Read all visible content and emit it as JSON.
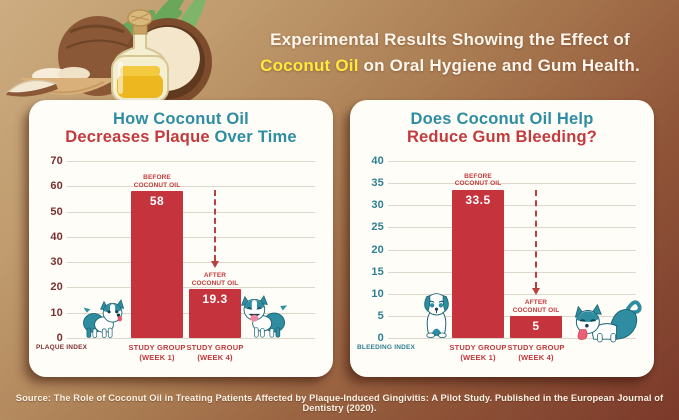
{
  "header": {
    "line1": "Experimental Results Showing the Effect of",
    "line2_highlight": "Coconut Oil",
    "line2_rest": " on Oral Hygiene and Gum Health."
  },
  "source": "Source: The Role of Coconut Oil in Treating Patients Affected by Plaque-Induced Gingivitis: A Pilot Study. Published in the European Journal of Dentistry (2020).",
  "colors": {
    "teal": "#2e8da1",
    "teal_dark": "#2d7f93",
    "red": "#c23a3e",
    "bar_red": "#c5333c",
    "maroon": "#7b3030",
    "white": "#ffffff",
    "yellow": "#ffe93a",
    "bg_light": "#ccac81",
    "bg_dark": "#7b392a"
  },
  "chart_data": [
    {
      "type": "bar",
      "title": "How Coconut Oil Decreases Plaque Over Time",
      "title_segments": [
        [
          {
            "text": "How Coconut Oil",
            "color": "teal"
          }
        ],
        [
          {
            "text": "Decreases Plaque",
            "color": "red"
          },
          {
            "text": " Over Time",
            "color": "teal"
          }
        ]
      ],
      "ylabel": "PLAQUE INDEX",
      "axis_color": "maroon",
      "ylim": [
        0,
        70
      ],
      "yticks": [
        70,
        60,
        50,
        40,
        30,
        20,
        10,
        0
      ],
      "grid": true,
      "categories": [
        "STUDY GROUP (WEEK 1)",
        "STUDY GROUP (WEEK 4)"
      ],
      "bars": [
        {
          "value": 58,
          "display": "58",
          "annotation": [
            "BEFORE",
            "COCONUT OIL"
          ],
          "arrow": false,
          "category": [
            "STUDY GROUP",
            "(WEEK 1)"
          ]
        },
        {
          "value": 19.3,
          "display": "19.3",
          "annotation": [
            "AFTER",
            "COCONUT OIL"
          ],
          "arrow": true,
          "category": [
            "STUDY GROUP",
            "(WEEK 4)"
          ]
        }
      ]
    },
    {
      "type": "bar",
      "title": "Does Coconut Oil Help Reduce Gum Bleeding?",
      "title_segments": [
        [
          {
            "text": "Does Coconut Oil Help",
            "color": "teal"
          }
        ],
        [
          {
            "text": "Reduce Gum Bleeding?",
            "color": "red"
          }
        ]
      ],
      "ylabel": "BLEEDING INDEX",
      "axis_color": "teal_dark",
      "ylim": [
        0,
        40
      ],
      "yticks": [
        40,
        35,
        30,
        25,
        20,
        15,
        10,
        5,
        0
      ],
      "grid": true,
      "categories": [
        "STUDY GROUP (WEEK 1)",
        "STUDY GROUP (WEEK 4)"
      ],
      "bars": [
        {
          "value": 33.5,
          "display": "33.5",
          "annotation": [
            "BEFORE",
            "COCONUT OIL"
          ],
          "arrow": false,
          "category": [
            "STUDY GROUP",
            "(WEEK 1)"
          ]
        },
        {
          "value": 5,
          "display": "5",
          "annotation": [
            "AFTER",
            "COCONUT OIL"
          ],
          "arrow": true,
          "category": [
            "STUDY GROUP",
            "(WEEK 4)"
          ]
        }
      ]
    }
  ]
}
